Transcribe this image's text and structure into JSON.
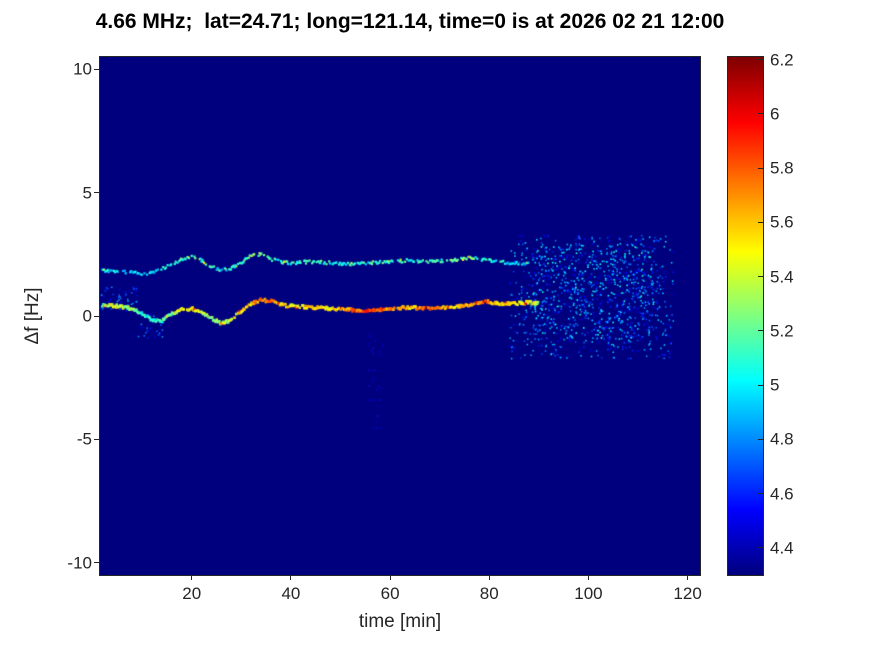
{
  "chart_data": {
    "type": "heatmap",
    "title": "4.66 MHz;  lat=24.71; long=121.14, time=0 is at 2026 02 21 12:00",
    "xlabel": "time [min]",
    "ylabel": "Δf [Hz]",
    "colormap": "jet",
    "grid": false,
    "legend": "none",
    "xlim": [
      1.5,
      122.5
    ],
    "ylim": [
      -10.5,
      10.5
    ],
    "clim": [
      4.3,
      6.21
    ],
    "xticks": [
      20,
      40,
      60,
      80,
      100,
      120
    ],
    "yticks": [
      10,
      5,
      0,
      -5,
      -10
    ],
    "colorbar_ticks": [
      6.2,
      6,
      5.8,
      5.6,
      5.4,
      5.2,
      5,
      4.8,
      4.6,
      4.4
    ],
    "background_value": 4.3,
    "series": [
      {
        "name": "main-doppler-trace-near-0Hz",
        "x": [
          2,
          5,
          8,
          10,
          12,
          14,
          16,
          18,
          20,
          22,
          24,
          26,
          28,
          30,
          32,
          34,
          36,
          38,
          40,
          44,
          48,
          52,
          56,
          60,
          64,
          68,
          72,
          76,
          79,
          82,
          85,
          88,
          90
        ],
        "y": [
          0.45,
          0.4,
          0.3,
          0.1,
          -0.15,
          -0.2,
          0.1,
          0.25,
          0.3,
          0.15,
          -0.1,
          -0.3,
          -0.15,
          0.2,
          0.5,
          0.65,
          0.6,
          0.45,
          0.4,
          0.35,
          0.3,
          0.25,
          0.2,
          0.3,
          0.35,
          0.3,
          0.35,
          0.45,
          0.6,
          0.5,
          0.5,
          0.55,
          0.5
        ],
        "v": [
          5.3,
          5.4,
          5.3,
          5.1,
          5.0,
          5.1,
          5.3,
          5.5,
          5.5,
          5.4,
          5.2,
          5.3,
          5.4,
          5.5,
          5.6,
          5.7,
          5.8,
          5.6,
          5.5,
          5.6,
          5.5,
          5.7,
          5.9,
          5.7,
          5.6,
          5.8,
          5.6,
          5.7,
          5.8,
          5.6,
          5.6,
          5.5,
          5.4
        ],
        "density": 0.88,
        "thickness": 2.6
      },
      {
        "name": "secondary-doppler-trace-near-2Hz",
        "x": [
          2,
          5,
          8,
          10,
          12,
          14,
          16,
          18,
          20,
          22,
          24,
          26,
          28,
          30,
          32,
          34,
          36,
          38,
          40,
          44,
          48,
          52,
          56,
          60,
          64,
          68,
          72,
          76,
          80,
          84,
          88
        ],
        "y": [
          1.85,
          1.8,
          1.75,
          1.7,
          1.75,
          1.9,
          2.1,
          2.3,
          2.4,
          2.25,
          2.0,
          1.85,
          1.95,
          2.15,
          2.45,
          2.5,
          2.3,
          2.2,
          2.15,
          2.2,
          2.15,
          2.1,
          2.15,
          2.2,
          2.25,
          2.2,
          2.25,
          2.35,
          2.25,
          2.15,
          2.1
        ],
        "v": [
          5.0,
          5.0,
          4.95,
          4.9,
          4.95,
          5.0,
          5.05,
          5.1,
          5.15,
          5.1,
          5.0,
          4.95,
          5.0,
          5.1,
          5.2,
          5.25,
          5.15,
          5.1,
          5.1,
          5.15,
          5.1,
          5.05,
          5.1,
          5.15,
          5.1,
          5.1,
          5.15,
          5.2,
          5.1,
          5.0,
          4.9
        ],
        "density": 0.6,
        "thickness": 2.2
      }
    ],
    "noise_clusters": [
      {
        "name": "left-speckle",
        "t": [
          1.5,
          9
        ],
        "f": [
          0.2,
          1.2
        ],
        "count": 45,
        "values": [
          4.45,
          4.9
        ],
        "size": 1.5
      },
      {
        "name": "left-low-speckle",
        "t": [
          9,
          14
        ],
        "f": [
          -0.9,
          0.1
        ],
        "count": 25,
        "values": [
          4.45,
          4.85
        ],
        "size": 1.5
      },
      {
        "name": "mid-faint-column",
        "t": [
          55.5,
          58.5
        ],
        "f": [
          -4.6,
          -0.6
        ],
        "count": 30,
        "values": [
          4.4,
          4.6
        ],
        "size": 1.3
      },
      {
        "name": "fade-speckle",
        "t": [
          84,
          117
        ],
        "f": [
          -1.7,
          3.3
        ],
        "count": 700,
        "values": [
          4.4,
          5.0
        ],
        "size": 1.5
      },
      {
        "name": "fade-dense",
        "t": [
          88,
          113
        ],
        "f": [
          -0.9,
          2.9
        ],
        "count": 550,
        "values": [
          4.45,
          5.1
        ],
        "size": 1.6
      }
    ]
  },
  "colors": {
    "title_text": "#000000",
    "axis_text": "#262626",
    "background_min": "#00007f",
    "colorbar_max": "#7f0000"
  }
}
